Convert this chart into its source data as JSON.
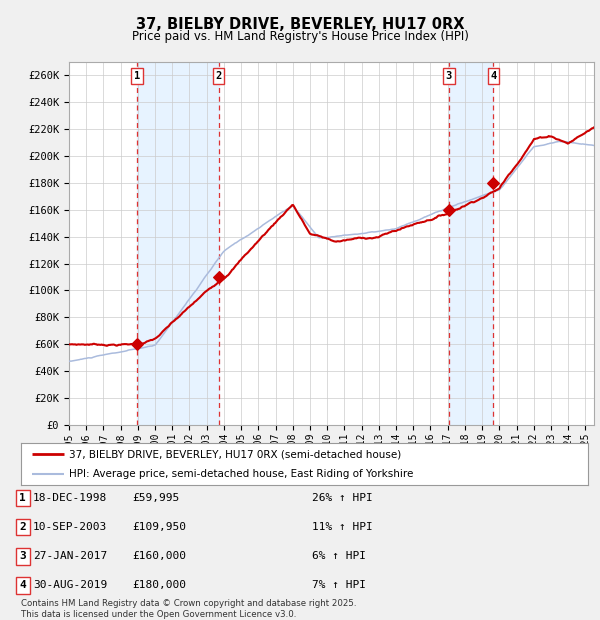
{
  "title": "37, BIELBY DRIVE, BEVERLEY, HU17 0RX",
  "subtitle": "Price paid vs. HM Land Registry's House Price Index (HPI)",
  "ylim": [
    0,
    270000
  ],
  "yticks": [
    0,
    20000,
    40000,
    60000,
    80000,
    100000,
    120000,
    140000,
    160000,
    180000,
    200000,
    220000,
    240000,
    260000
  ],
  "ytick_labels": [
    "£0",
    "£20K",
    "£40K",
    "£60K",
    "£80K",
    "£100K",
    "£120K",
    "£140K",
    "£160K",
    "£180K",
    "£200K",
    "£220K",
    "£240K",
    "£260K"
  ],
  "plot_bg_color": "#ffffff",
  "fig_bg_color": "#f0f0f0",
  "grid_color": "#cccccc",
  "red_line_color": "#cc0000",
  "blue_line_color": "#aabbdd",
  "dashed_line_color": "#dd3333",
  "shade_color": "#ddeeff",
  "transactions": [
    {
      "num": 1,
      "date": "18-DEC-1998",
      "price": 59995,
      "hpi_pct": "26%",
      "year": 1998.96
    },
    {
      "num": 2,
      "date": "10-SEP-2003",
      "price": 109950,
      "hpi_pct": "11%",
      "year": 2003.69
    },
    {
      "num": 3,
      "date": "27-JAN-2017",
      "price": 160000,
      "hpi_pct": "6%",
      "year": 2017.07
    },
    {
      "num": 4,
      "date": "30-AUG-2019",
      "price": 180000,
      "hpi_pct": "7%",
      "year": 2019.66
    }
  ],
  "legend_red_label": "37, BIELBY DRIVE, BEVERLEY, HU17 0RX (semi-detached house)",
  "legend_blue_label": "HPI: Average price, semi-detached house, East Riding of Yorkshire",
  "footer": "Contains HM Land Registry data © Crown copyright and database right 2025.\nThis data is licensed under the Open Government Licence v3.0.",
  "table_rows": [
    [
      "1",
      "18-DEC-1998",
      "£59,995",
      "26% ↑ HPI"
    ],
    [
      "2",
      "10-SEP-2003",
      "£109,950",
      "11% ↑ HPI"
    ],
    [
      "3",
      "27-JAN-2017",
      "£160,000",
      "6% ↑ HPI"
    ],
    [
      "4",
      "30-AUG-2019",
      "£180,000",
      "7% ↑ HPI"
    ]
  ]
}
